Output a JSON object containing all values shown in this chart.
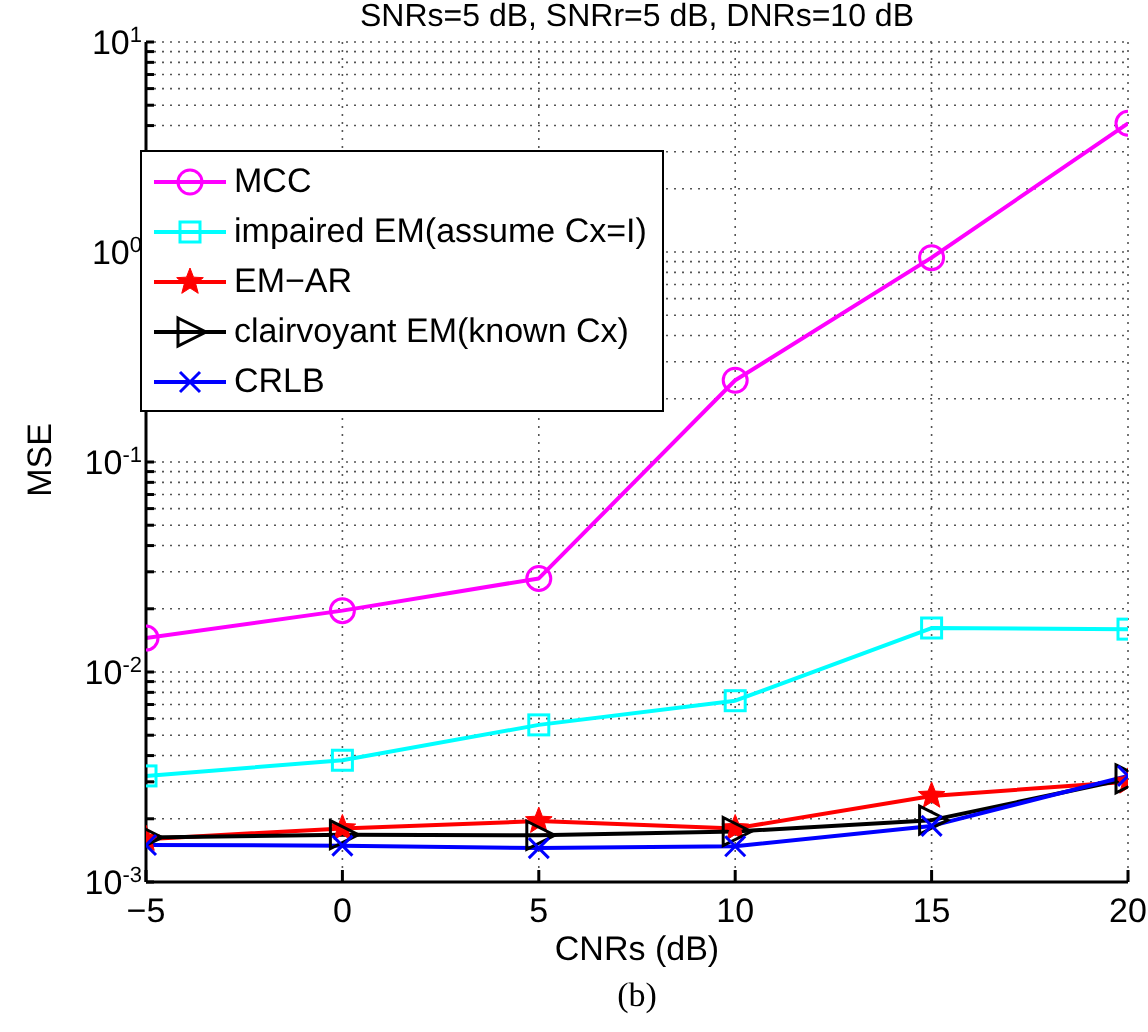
{
  "chart_data": {
    "type": "line",
    "title": "SNRs=5 dB, SNRr=5 dB, DNRs=10 dB",
    "xlabel": "CNRs (dB)",
    "ylabel": "MSE",
    "annotations": [
      "(b)"
    ],
    "x": [
      -5,
      0,
      5,
      10,
      15,
      20
    ],
    "series": [
      {
        "name": "MCC",
        "color": "#ff00ff",
        "marker": "circle",
        "values": [
          0.0145,
          0.0196,
          0.0279,
          0.245,
          0.94,
          4.1
        ]
      },
      {
        "name": "impaired EM(assume Cx=I)",
        "color": "#00ffff",
        "marker": "square",
        "values": [
          0.0032,
          0.0038,
          0.0056,
          0.0073,
          0.0162,
          0.016
        ]
      },
      {
        "name": "EM−AR",
        "color": "#ff0000",
        "marker": "star",
        "values": [
          0.0016,
          0.0018,
          0.00195,
          0.0018,
          0.00257,
          0.003
        ]
      },
      {
        "name": "clairvoyant EM(known Cx)",
        "color": "#000000",
        "marker": "triangle",
        "values": [
          0.00163,
          0.00168,
          0.00167,
          0.00174,
          0.00197,
          0.0031
        ]
      },
      {
        "name": "CRLB",
        "color": "#0000ff",
        "marker": "cross",
        "values": [
          0.0015,
          0.00149,
          0.00145,
          0.00148,
          0.00185,
          0.0032
        ]
      }
    ],
    "xlim": [
      -5,
      20
    ],
    "xticks": [
      -5,
      0,
      5,
      10,
      15,
      20
    ],
    "ylim": [
      0.001,
      10
    ],
    "yticks": [
      {
        "value": 0.001,
        "label": "10$^{-3}$"
      },
      {
        "value": 0.002,
        "label": null
      },
      {
        "value": 0.003,
        "label": null
      },
      {
        "value": 0.004,
        "label": null
      },
      {
        "value": 0.005,
        "label": null
      },
      {
        "value": 0.006,
        "label": null
      },
      {
        "value": 0.007,
        "label": null
      },
      {
        "value": 0.008,
        "label": null
      },
      {
        "value": 0.009,
        "label": null
      },
      {
        "value": 0.01,
        "label": "10$^{-2}$"
      },
      {
        "value": 0.02,
        "label": null
      },
      {
        "value": 0.03,
        "label": null
      },
      {
        "value": 0.04,
        "label": null
      },
      {
        "value": 0.05,
        "label": null
      },
      {
        "value": 0.06,
        "label": null
      },
      {
        "value": 0.07,
        "label": null
      },
      {
        "value": 0.08,
        "label": null
      },
      {
        "value": 0.09,
        "label": null
      },
      {
        "value": 0.1,
        "label": "10$^{-1}$"
      },
      {
        "value": 0.2,
        "label": null
      },
      {
        "value": 0.3,
        "label": null
      },
      {
        "value": 0.4,
        "label": null
      },
      {
        "value": 0.5,
        "label": null
      },
      {
        "value": 0.6,
        "label": null
      },
      {
        "value": 0.7,
        "label": null
      },
      {
        "value": 0.8,
        "label": null
      },
      {
        "value": 0.9,
        "label": null
      },
      {
        "value": 1,
        "label": "10$^{0}$"
      },
      {
        "value": 2,
        "label": null
      },
      {
        "value": 3,
        "label": null
      },
      {
        "value": 4,
        "label": null
      },
      {
        "value": 5,
        "label": null
      },
      {
        "value": 6,
        "label": null
      },
      {
        "value": 7,
        "label": null
      },
      {
        "value": 8,
        "label": null
      },
      {
        "value": 9,
        "label": null
      },
      {
        "value": 10,
        "label": "10$^{1}$"
      }
    ],
    "log": "y",
    "grid": true,
    "legend": "top left",
    "line_style": "solid"
  }
}
